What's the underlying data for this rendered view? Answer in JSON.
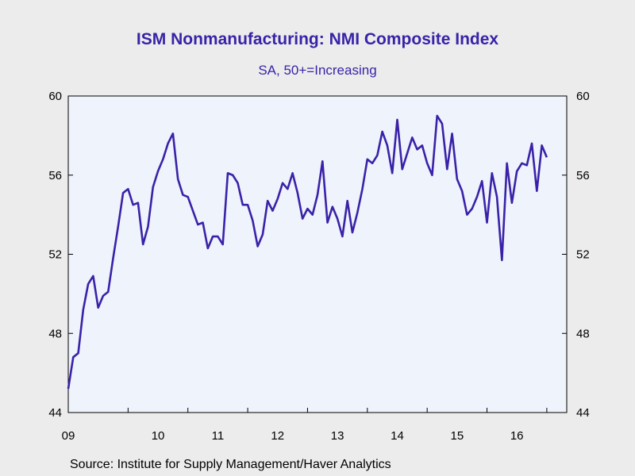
{
  "chart_data": {
    "type": "line",
    "title": "ISM Nonmanufacturing: NMI Composite Index",
    "subtitle": "SA, 50+=Increasing",
    "source": "Source:  Institute for Supply Management/Haver Analytics",
    "ylim": [
      44,
      60
    ],
    "yticks": [
      44,
      48,
      52,
      56,
      60
    ],
    "ytick_labels": [
      "44",
      "48",
      "52",
      "56",
      "60"
    ],
    "xlim": [
      "2009-01",
      "2017-05"
    ],
    "year_labels": [
      "09",
      "10",
      "11",
      "12",
      "13",
      "14",
      "15",
      "16"
    ],
    "grid": false,
    "line_color": "#3a22a8",
    "plot_background": "#eef3fc",
    "series": [
      {
        "start": "2009-01",
        "frequency": "monthly",
        "values": [
          45.2,
          46.8,
          47.0,
          49.2,
          50.5,
          50.9,
          49.3,
          49.9,
          50.1,
          51.8,
          53.4,
          55.1,
          55.3,
          54.5,
          54.6,
          52.5,
          53.4,
          55.4,
          56.2,
          56.8,
          57.6,
          58.1,
          55.8,
          55.0,
          54.9,
          54.2,
          53.5,
          53.6,
          52.3,
          52.9,
          52.9,
          52.5,
          56.1,
          56.0,
          55.6,
          54.5,
          54.5,
          53.7,
          52.4,
          53.0,
          54.7,
          54.2,
          54.8,
          55.6,
          55.3,
          56.1,
          55.1,
          53.8,
          54.3,
          54.0,
          55.0,
          56.7,
          53.6,
          54.4,
          53.8,
          52.9,
          54.7,
          53.1,
          54.1,
          55.3,
          56.8,
          56.6,
          57.0,
          58.2,
          57.5,
          56.1,
          58.8,
          56.3,
          57.1,
          57.9,
          57.3,
          57.5,
          56.6,
          56.0,
          59.0,
          58.6,
          56.3,
          58.1,
          55.8,
          55.2,
          54.0,
          54.3,
          54.9,
          55.7,
          53.6,
          56.1,
          54.9,
          51.7,
          56.6,
          54.6,
          56.2,
          56.6,
          56.5,
          57.6,
          55.2,
          57.5,
          56.9
        ]
      }
    ]
  }
}
